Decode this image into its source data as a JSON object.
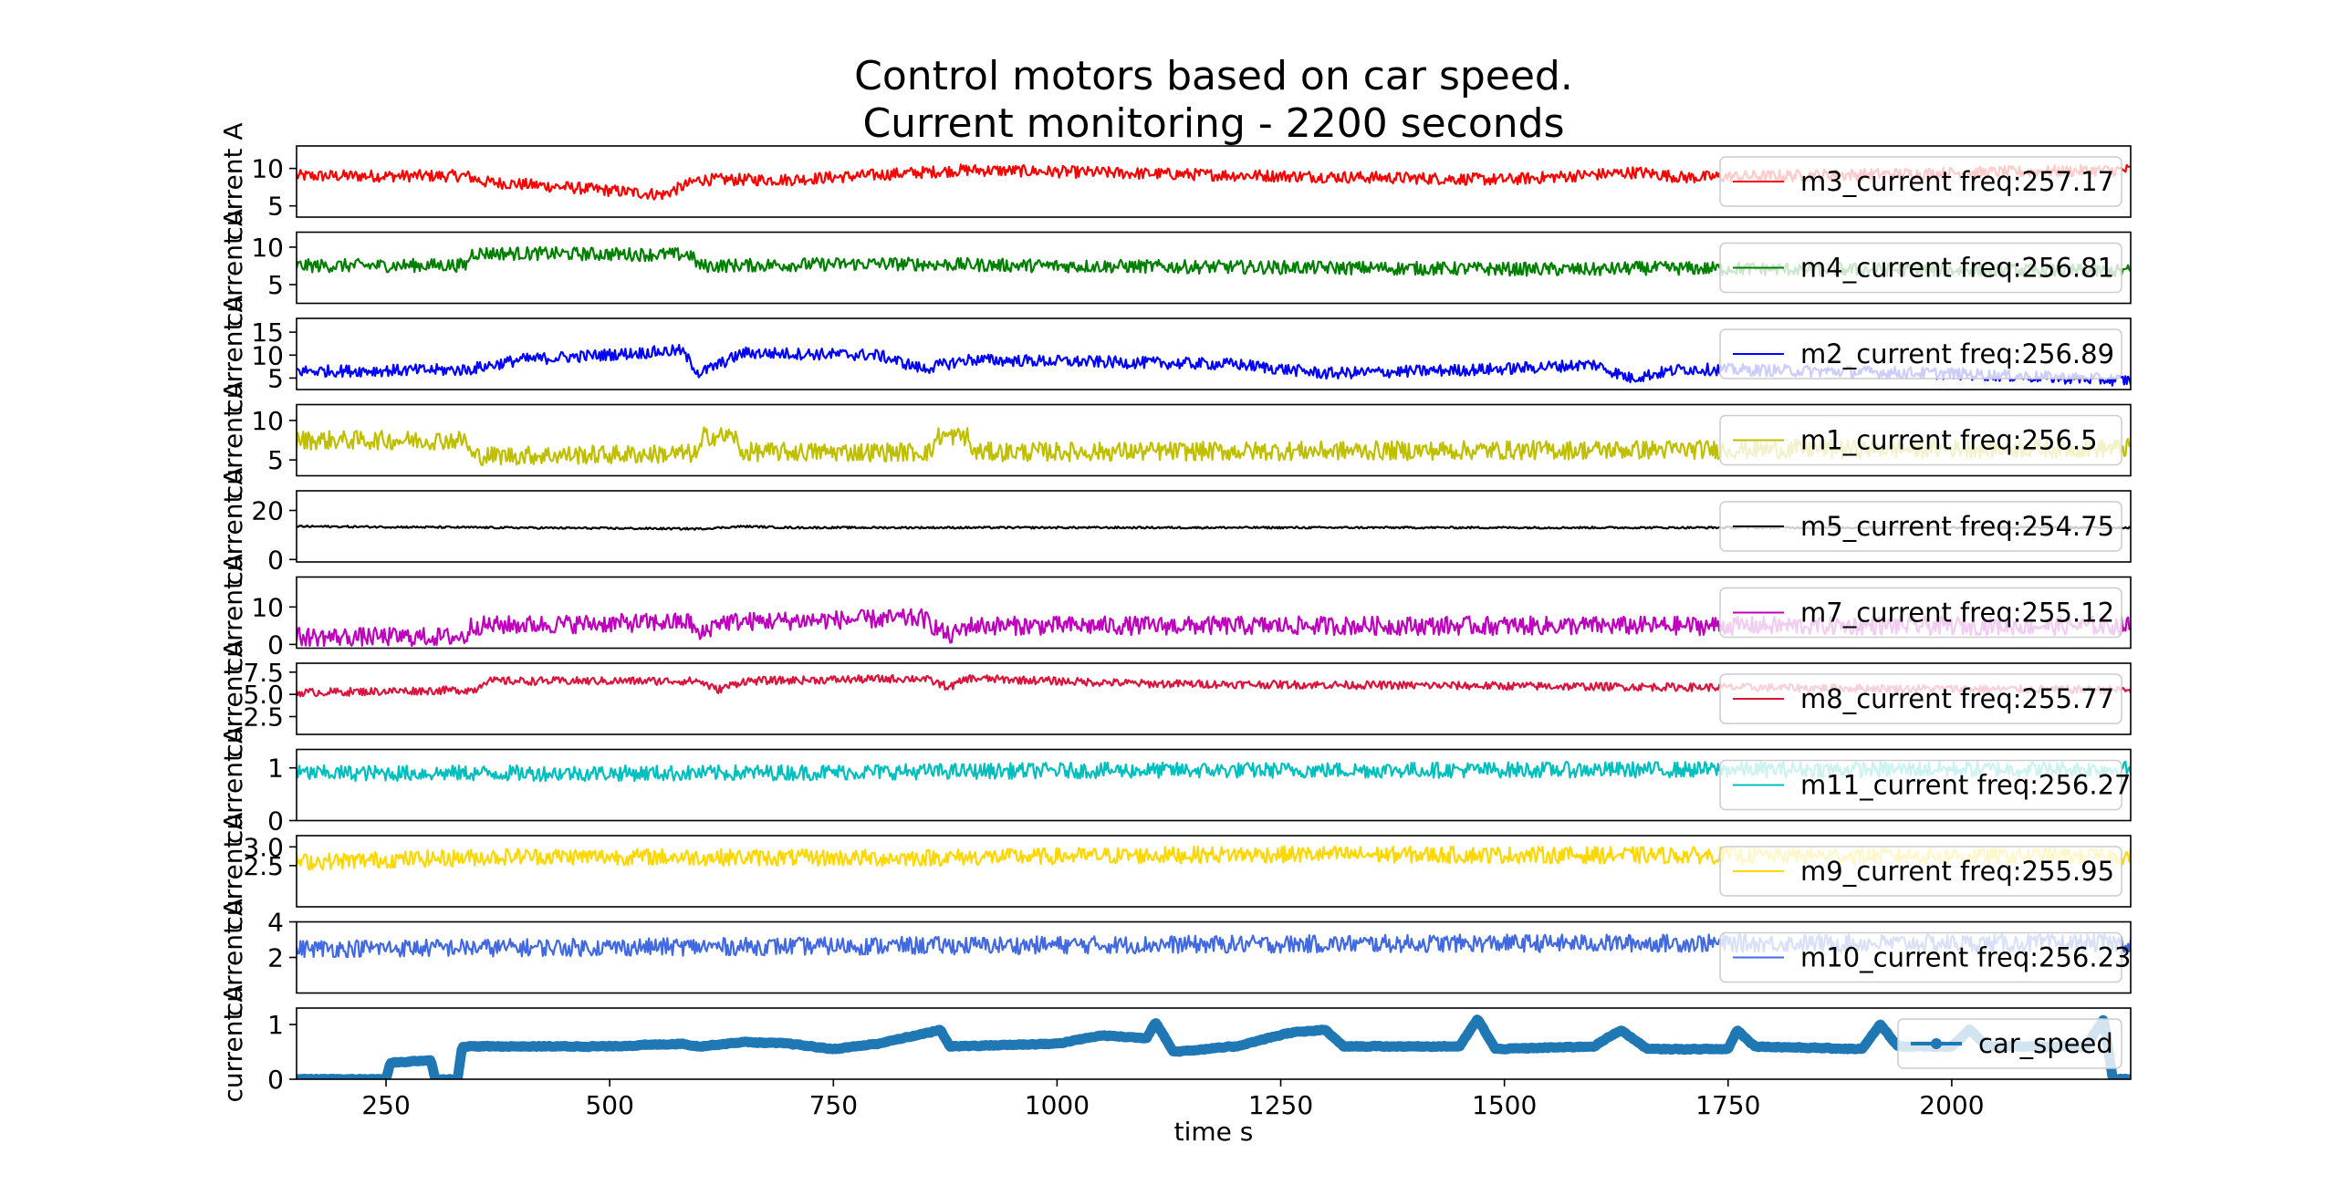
{
  "chart_data": {
    "type": "line",
    "title_lines": [
      "Control motors based on car speed.",
      "Current monitoring - 2200 seconds"
    ],
    "xlabel": "time s",
    "xlim": [
      150,
      2200
    ],
    "xticks": [
      250,
      500,
      750,
      1000,
      1250,
      1500,
      1750,
      2000
    ],
    "legend_position": "right",
    "grid": false,
    "panels": [
      {
        "name": "m3_current",
        "legend": "m3_current freq:257.17",
        "color": "#ff0000",
        "ylabel": "current A",
        "ylim": [
          3.5,
          13
        ],
        "yticks": [
          5,
          10
        ],
        "profile": [
          [
            150,
            9
          ],
          [
            340,
            9
          ],
          [
            360,
            8.2
          ],
          [
            450,
            7.5
          ],
          [
            560,
            6.5
          ],
          [
            600,
            8.5
          ],
          [
            700,
            8.5
          ],
          [
            900,
            9.8
          ],
          [
            1150,
            9.2
          ],
          [
            1500,
            8.5
          ],
          [
            1650,
            9.5
          ],
          [
            1700,
            8.8
          ],
          [
            2200,
            9.8
          ]
        ],
        "noise": 1.6
      },
      {
        "name": "m4_current",
        "legend": "m4_current freq:256.81",
        "color": "#008000",
        "ylabel": "current A",
        "ylim": [
          2.5,
          12
        ],
        "yticks": [
          5,
          10
        ],
        "profile": [
          [
            150,
            7.5
          ],
          [
            340,
            7.6
          ],
          [
            345,
            9.2
          ],
          [
            590,
            9
          ],
          [
            600,
            7.5
          ],
          [
            800,
            7.8
          ],
          [
            1000,
            7.5
          ],
          [
            1600,
            7
          ],
          [
            1650,
            7.2
          ],
          [
            2200,
            6.8
          ]
        ],
        "noise": 1.8
      },
      {
        "name": "m2_current",
        "legend": "m2_current freq:256.89",
        "color": "#0000ff",
        "ylabel": "current A",
        "ylim": [
          2.5,
          18
        ],
        "yticks": [
          5,
          10,
          15
        ],
        "profile": [
          [
            150,
            6.5
          ],
          [
            340,
            6.8
          ],
          [
            400,
            9
          ],
          [
            580,
            11
          ],
          [
            600,
            6
          ],
          [
            650,
            10.5
          ],
          [
            800,
            10
          ],
          [
            850,
            7
          ],
          [
            900,
            9
          ],
          [
            1200,
            8
          ],
          [
            1300,
            6
          ],
          [
            1500,
            7
          ],
          [
            1600,
            8
          ],
          [
            1640,
            5
          ],
          [
            1700,
            7
          ],
          [
            2000,
            6
          ],
          [
            2200,
            4.5
          ]
        ],
        "noise": 2.6
      },
      {
        "name": "m1_current",
        "legend": "m1_current freq:256.5",
        "color": "#bfbf00",
        "ylabel": "current A",
        "ylim": [
          3,
          12
        ],
        "yticks": [
          5,
          10
        ],
        "profile": [
          [
            150,
            7.5
          ],
          [
            340,
            7.5
          ],
          [
            345,
            5.5
          ],
          [
            600,
            5.8
          ],
          [
            605,
            8
          ],
          [
            640,
            8
          ],
          [
            645,
            6
          ],
          [
            860,
            6
          ],
          [
            865,
            8
          ],
          [
            900,
            8
          ],
          [
            905,
            6
          ],
          [
            2200,
            6.5
          ]
        ],
        "noise": 2.4
      },
      {
        "name": "m5_current",
        "legend": "m5_current freq:254.75",
        "color": "#000000",
        "ylabel": "current A",
        "ylim": [
          -1,
          28
        ],
        "yticks": [
          0,
          20
        ],
        "profile": [
          [
            150,
            13.5
          ],
          [
            600,
            12.5
          ],
          [
            650,
            13.5
          ],
          [
            700,
            13
          ],
          [
            2200,
            13
          ]
        ],
        "noise": 0.8
      },
      {
        "name": "m7_current",
        "legend": "m7_current freq:255.12",
        "color": "#bf00bf",
        "ylabel": "current A",
        "ylim": [
          -1,
          18
        ],
        "yticks": [
          0,
          10
        ],
        "profile": [
          [
            150,
            2
          ],
          [
            340,
            2
          ],
          [
            345,
            5
          ],
          [
            590,
            6
          ],
          [
            600,
            2
          ],
          [
            620,
            6
          ],
          [
            850,
            7
          ],
          [
            880,
            2
          ],
          [
            900,
            5
          ],
          [
            2200,
            5
          ]
        ],
        "noise": 5
      },
      {
        "name": "m8_current",
        "legend": "m8_current freq:255.77",
        "color": "#dc143c",
        "ylabel": "current A",
        "ylim": [
          0.5,
          8.5
        ],
        "yticks": [
          2.5,
          5.0,
          7.5
        ],
        "profile": [
          [
            150,
            5.2
          ],
          [
            350,
            5.5
          ],
          [
            360,
            6.5
          ],
          [
            600,
            6.5
          ],
          [
            620,
            5.5
          ],
          [
            650,
            6.5
          ],
          [
            850,
            6.8
          ],
          [
            880,
            5.8
          ],
          [
            900,
            6.8
          ],
          [
            1100,
            6.2
          ],
          [
            2200,
            5.5
          ]
        ],
        "noise": 0.9
      },
      {
        "name": "m11_current",
        "legend": "m11_current freq:256.27",
        "color": "#00bfbf",
        "ylabel": "current A",
        "ylim": [
          0,
          1.35
        ],
        "yticks": [
          0,
          1
        ],
        "profile": [
          [
            150,
            0.9
          ],
          [
            600,
            0.9
          ],
          [
            1000,
            0.95
          ],
          [
            2200,
            0.98
          ]
        ],
        "noise": 0.3
      },
      {
        "name": "m9_current",
        "legend": "m9_current freq:255.95",
        "color": "#ffd700",
        "ylabel": "current A",
        "ylim": [
          1.4,
          3.3
        ],
        "yticks": [
          2.5,
          3.0
        ],
        "profile": [
          [
            150,
            2.6
          ],
          [
            400,
            2.75
          ],
          [
            800,
            2.7
          ],
          [
            1200,
            2.8
          ],
          [
            2200,
            2.75
          ]
        ],
        "noise": 0.45
      },
      {
        "name": "m10_current",
        "legend": "m10_current freq:256.23",
        "color": "#4169e1",
        "ylabel": "current A",
        "ylim": [
          0,
          4
        ],
        "yticks": [
          2,
          4
        ],
        "profile": [
          [
            150,
            2.5
          ],
          [
            600,
            2.6
          ],
          [
            1000,
            2.7
          ],
          [
            1500,
            2.8
          ],
          [
            2200,
            2.8
          ]
        ],
        "noise": 1.0
      },
      {
        "name": "car_speed",
        "legend": "car_speed",
        "color": "#1f77b4",
        "ylabel": "current A",
        "ylim": [
          0,
          1.3
        ],
        "yticks": [
          0,
          1
        ],
        "thick": true,
        "profile": [
          [
            150,
            0
          ],
          [
            250,
            0
          ],
          [
            255,
            0.3
          ],
          [
            300,
            0.35
          ],
          [
            305,
            0
          ],
          [
            330,
            0
          ],
          [
            335,
            0.6
          ],
          [
            500,
            0.6
          ],
          [
            580,
            0.65
          ],
          [
            600,
            0.6
          ],
          [
            650,
            0.68
          ],
          [
            700,
            0.65
          ],
          [
            750,
            0.55
          ],
          [
            800,
            0.65
          ],
          [
            870,
            0.9
          ],
          [
            880,
            0.6
          ],
          [
            1000,
            0.65
          ],
          [
            1050,
            0.8
          ],
          [
            1100,
            0.75
          ],
          [
            1110,
            1.05
          ],
          [
            1130,
            0.5
          ],
          [
            1200,
            0.6
          ],
          [
            1260,
            0.85
          ],
          [
            1300,
            0.9
          ],
          [
            1320,
            0.6
          ],
          [
            1450,
            0.6
          ],
          [
            1470,
            1.1
          ],
          [
            1490,
            0.55
          ],
          [
            1600,
            0.6
          ],
          [
            1630,
            0.9
          ],
          [
            1660,
            0.55
          ],
          [
            1750,
            0.55
          ],
          [
            1760,
            0.9
          ],
          [
            1780,
            0.6
          ],
          [
            1900,
            0.55
          ],
          [
            1920,
            1.0
          ],
          [
            1940,
            0.6
          ],
          [
            2000,
            0.6
          ],
          [
            2020,
            0.9
          ],
          [
            2040,
            0.6
          ],
          [
            2150,
            0.6
          ],
          [
            2170,
            1.1
          ],
          [
            2180,
            0
          ],
          [
            2200,
            0
          ]
        ],
        "noise": 0.03
      }
    ]
  }
}
